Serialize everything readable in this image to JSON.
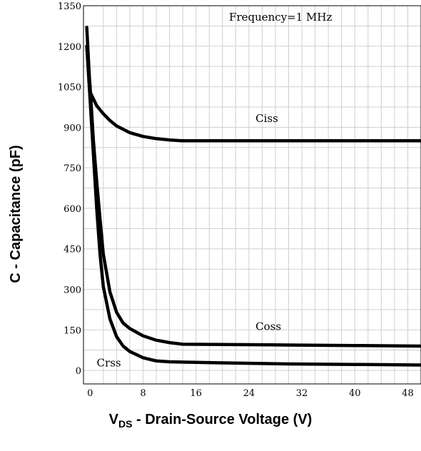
{
  "chart_data": {
    "type": "line",
    "title": "",
    "xlabel": {
      "prefix": "V",
      "subscript": "DS",
      "rest": " - Drain-Source Voltage (V)"
    },
    "ylabel": "C - Capacitance (pF)",
    "xlim": [
      -1,
      50
    ],
    "ylim": [
      -50,
      1350
    ],
    "xticks": [
      0,
      8,
      16,
      24,
      32,
      40,
      48
    ],
    "yticks": [
      0,
      150,
      300,
      450,
      600,
      750,
      900,
      1050,
      1200,
      1350
    ],
    "grid": true,
    "annotations": [
      {
        "text": "Frequency=1 MHz",
        "x": 21,
        "y": 1295
      },
      {
        "text": "Ciss",
        "x": 25,
        "y": 920
      },
      {
        "text": "Coss",
        "x": 25,
        "y": 150
      },
      {
        "text": "Crss",
        "x": 1,
        "y": 15
      }
    ],
    "series": [
      {
        "name": "Ciss",
        "x": [
          -0.5,
          0,
          1,
          2,
          3,
          4,
          6,
          8,
          10,
          12,
          14,
          20,
          30,
          40,
          50
        ],
        "values": [
          1270,
          1030,
          980,
          950,
          925,
          905,
          880,
          866,
          858,
          853,
          850,
          850,
          850,
          850,
          850
        ]
      },
      {
        "name": "Coss",
        "x": [
          -0.5,
          0,
          0.5,
          1,
          1.5,
          2,
          3,
          4,
          5,
          6,
          8,
          10,
          12,
          14,
          20,
          30,
          40,
          50
        ],
        "values": [
          1200,
          1050,
          850,
          700,
          560,
          430,
          290,
          215,
          175,
          155,
          128,
          112,
          103,
          97,
          96,
          94,
          92,
          90
        ]
      },
      {
        "name": "Crss",
        "x": [
          -0.5,
          0,
          0.5,
          1,
          1.5,
          2,
          3,
          4,
          5,
          6,
          8,
          10,
          12,
          20,
          30,
          40,
          50
        ],
        "values": [
          1200,
          1000,
          800,
          600,
          430,
          310,
          190,
          125,
          90,
          70,
          47,
          35,
          32,
          28,
          24,
          22,
          20
        ]
      }
    ]
  }
}
